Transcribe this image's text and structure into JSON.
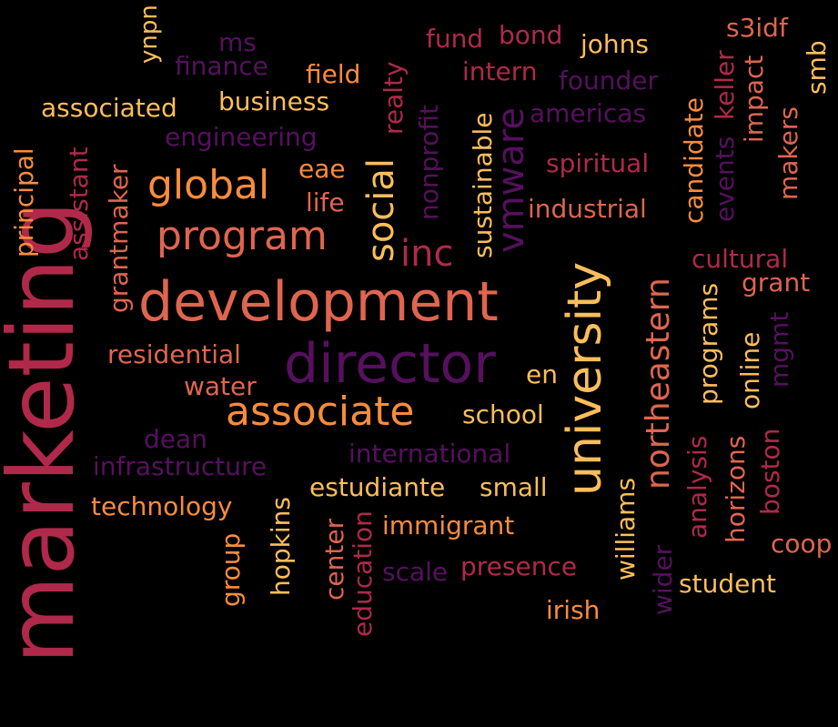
{
  "words": [
    {
      "text": "marketing",
      "color": "#b0294a",
      "vertical": true
    },
    {
      "text": "development",
      "color": "#e0654f",
      "vertical": false
    },
    {
      "text": "director",
      "color": "#56105e",
      "vertical": false
    },
    {
      "text": "university",
      "color": "#fcbe5a",
      "vertical": true
    },
    {
      "text": "associate",
      "color": "#f98c3c",
      "vertical": false
    },
    {
      "text": "northeastern",
      "color": "#e0654f",
      "vertical": true
    },
    {
      "text": "program",
      "color": "#e0654f",
      "vertical": false
    },
    {
      "text": "global",
      "color": "#f98c3c",
      "vertical": false
    },
    {
      "text": "inc",
      "color": "#b0294a",
      "vertical": false
    },
    {
      "text": "social",
      "color": "#fcbe5a",
      "vertical": true
    },
    {
      "text": "vmware",
      "color": "#56105e",
      "vertical": true
    },
    {
      "text": "ynpn",
      "color": "#fcbe5a",
      "vertical": true
    },
    {
      "text": "ms",
      "color": "#56105e",
      "vertical": false
    },
    {
      "text": "finance",
      "color": "#56105e",
      "vertical": false
    },
    {
      "text": "fund",
      "color": "#b0294a",
      "vertical": false
    },
    {
      "text": "bond",
      "color": "#b0294a",
      "vertical": false
    },
    {
      "text": "johns",
      "color": "#fcbe5a",
      "vertical": false
    },
    {
      "text": "s3idf",
      "color": "#e0654f",
      "vertical": false
    },
    {
      "text": "smb",
      "color": "#fcbe5a",
      "vertical": true
    },
    {
      "text": "field",
      "color": "#f98c3c",
      "vertical": false
    },
    {
      "text": "intern",
      "color": "#b0294a",
      "vertical": false
    },
    {
      "text": "founder",
      "color": "#56105e",
      "vertical": false
    },
    {
      "text": "keller",
      "color": "#b0294a",
      "vertical": true
    },
    {
      "text": "impact",
      "color": "#e0654f",
      "vertical": true
    },
    {
      "text": "associated",
      "color": "#fcbe5a",
      "vertical": false
    },
    {
      "text": "business",
      "color": "#fcbe5a",
      "vertical": false
    },
    {
      "text": "realty",
      "color": "#b0294a",
      "vertical": true
    },
    {
      "text": "americas",
      "color": "#56105e",
      "vertical": false
    },
    {
      "text": "engineering",
      "color": "#56105e",
      "vertical": false
    },
    {
      "text": "nonprofit",
      "color": "#56105e",
      "vertical": true
    },
    {
      "text": "sustainable",
      "color": "#fcbe5a",
      "vertical": true
    },
    {
      "text": "spiritual",
      "color": "#b0294a",
      "vertical": false
    },
    {
      "text": "candidate",
      "color": "#f98c3c",
      "vertical": true
    },
    {
      "text": "events",
      "color": "#56105e",
      "vertical": true
    },
    {
      "text": "makers",
      "color": "#e0654f",
      "vertical": true
    },
    {
      "text": "principal",
      "color": "#f98c3c",
      "vertical": true
    },
    {
      "text": "assistant",
      "color": "#b0294a",
      "vertical": true
    },
    {
      "text": "eae",
      "color": "#f98c3c",
      "vertical": false
    },
    {
      "text": "life",
      "color": "#e0654f",
      "vertical": false
    },
    {
      "text": "industrial",
      "color": "#e0654f",
      "vertical": false
    },
    {
      "text": "grantmaker",
      "color": "#e0654f",
      "vertical": true
    },
    {
      "text": "cultural",
      "color": "#b0294a",
      "vertical": false
    },
    {
      "text": "grant",
      "color": "#e0654f",
      "vertical": false
    },
    {
      "text": "programs",
      "color": "#fcbe5a",
      "vertical": true
    },
    {
      "text": "online",
      "color": "#fcbe5a",
      "vertical": true
    },
    {
      "text": "mgmt",
      "color": "#56105e",
      "vertical": true
    },
    {
      "text": "residential",
      "color": "#e0654f",
      "vertical": false
    },
    {
      "text": "water",
      "color": "#e0654f",
      "vertical": false
    },
    {
      "text": "en",
      "color": "#fcbe5a",
      "vertical": false
    },
    {
      "text": "school",
      "color": "#fcbe5a",
      "vertical": false
    },
    {
      "text": "dean",
      "color": "#56105e",
      "vertical": false
    },
    {
      "text": "infrastructure",
      "color": "#56105e",
      "vertical": false
    },
    {
      "text": "international",
      "color": "#56105e",
      "vertical": false
    },
    {
      "text": "analysis",
      "color": "#b0294a",
      "vertical": true
    },
    {
      "text": "horizons",
      "color": "#e0654f",
      "vertical": true
    },
    {
      "text": "boston",
      "color": "#b0294a",
      "vertical": true
    },
    {
      "text": "technology",
      "color": "#f98c3c",
      "vertical": false
    },
    {
      "text": "estudiante",
      "color": "#fcbe5a",
      "vertical": false
    },
    {
      "text": "small",
      "color": "#fcbe5a",
      "vertical": false
    },
    {
      "text": "williams",
      "color": "#fcbe5a",
      "vertical": true
    },
    {
      "text": "coop",
      "color": "#e0654f",
      "vertical": false
    },
    {
      "text": "hopkins",
      "color": "#fcbe5a",
      "vertical": true
    },
    {
      "text": "immigrant",
      "color": "#f98c3c",
      "vertical": false
    },
    {
      "text": "group",
      "color": "#f98c3c",
      "vertical": true
    },
    {
      "text": "center",
      "color": "#e0654f",
      "vertical": true
    },
    {
      "text": "education",
      "color": "#b0294a",
      "vertical": true
    },
    {
      "text": "scale",
      "color": "#56105e",
      "vertical": false
    },
    {
      "text": "presence",
      "color": "#b0294a",
      "vertical": false
    },
    {
      "text": "wider",
      "color": "#56105e",
      "vertical": true
    },
    {
      "text": "student",
      "color": "#fcbe5a",
      "vertical": false
    },
    {
      "text": "irish",
      "color": "#f98c3c",
      "vertical": false
    }
  ]
}
